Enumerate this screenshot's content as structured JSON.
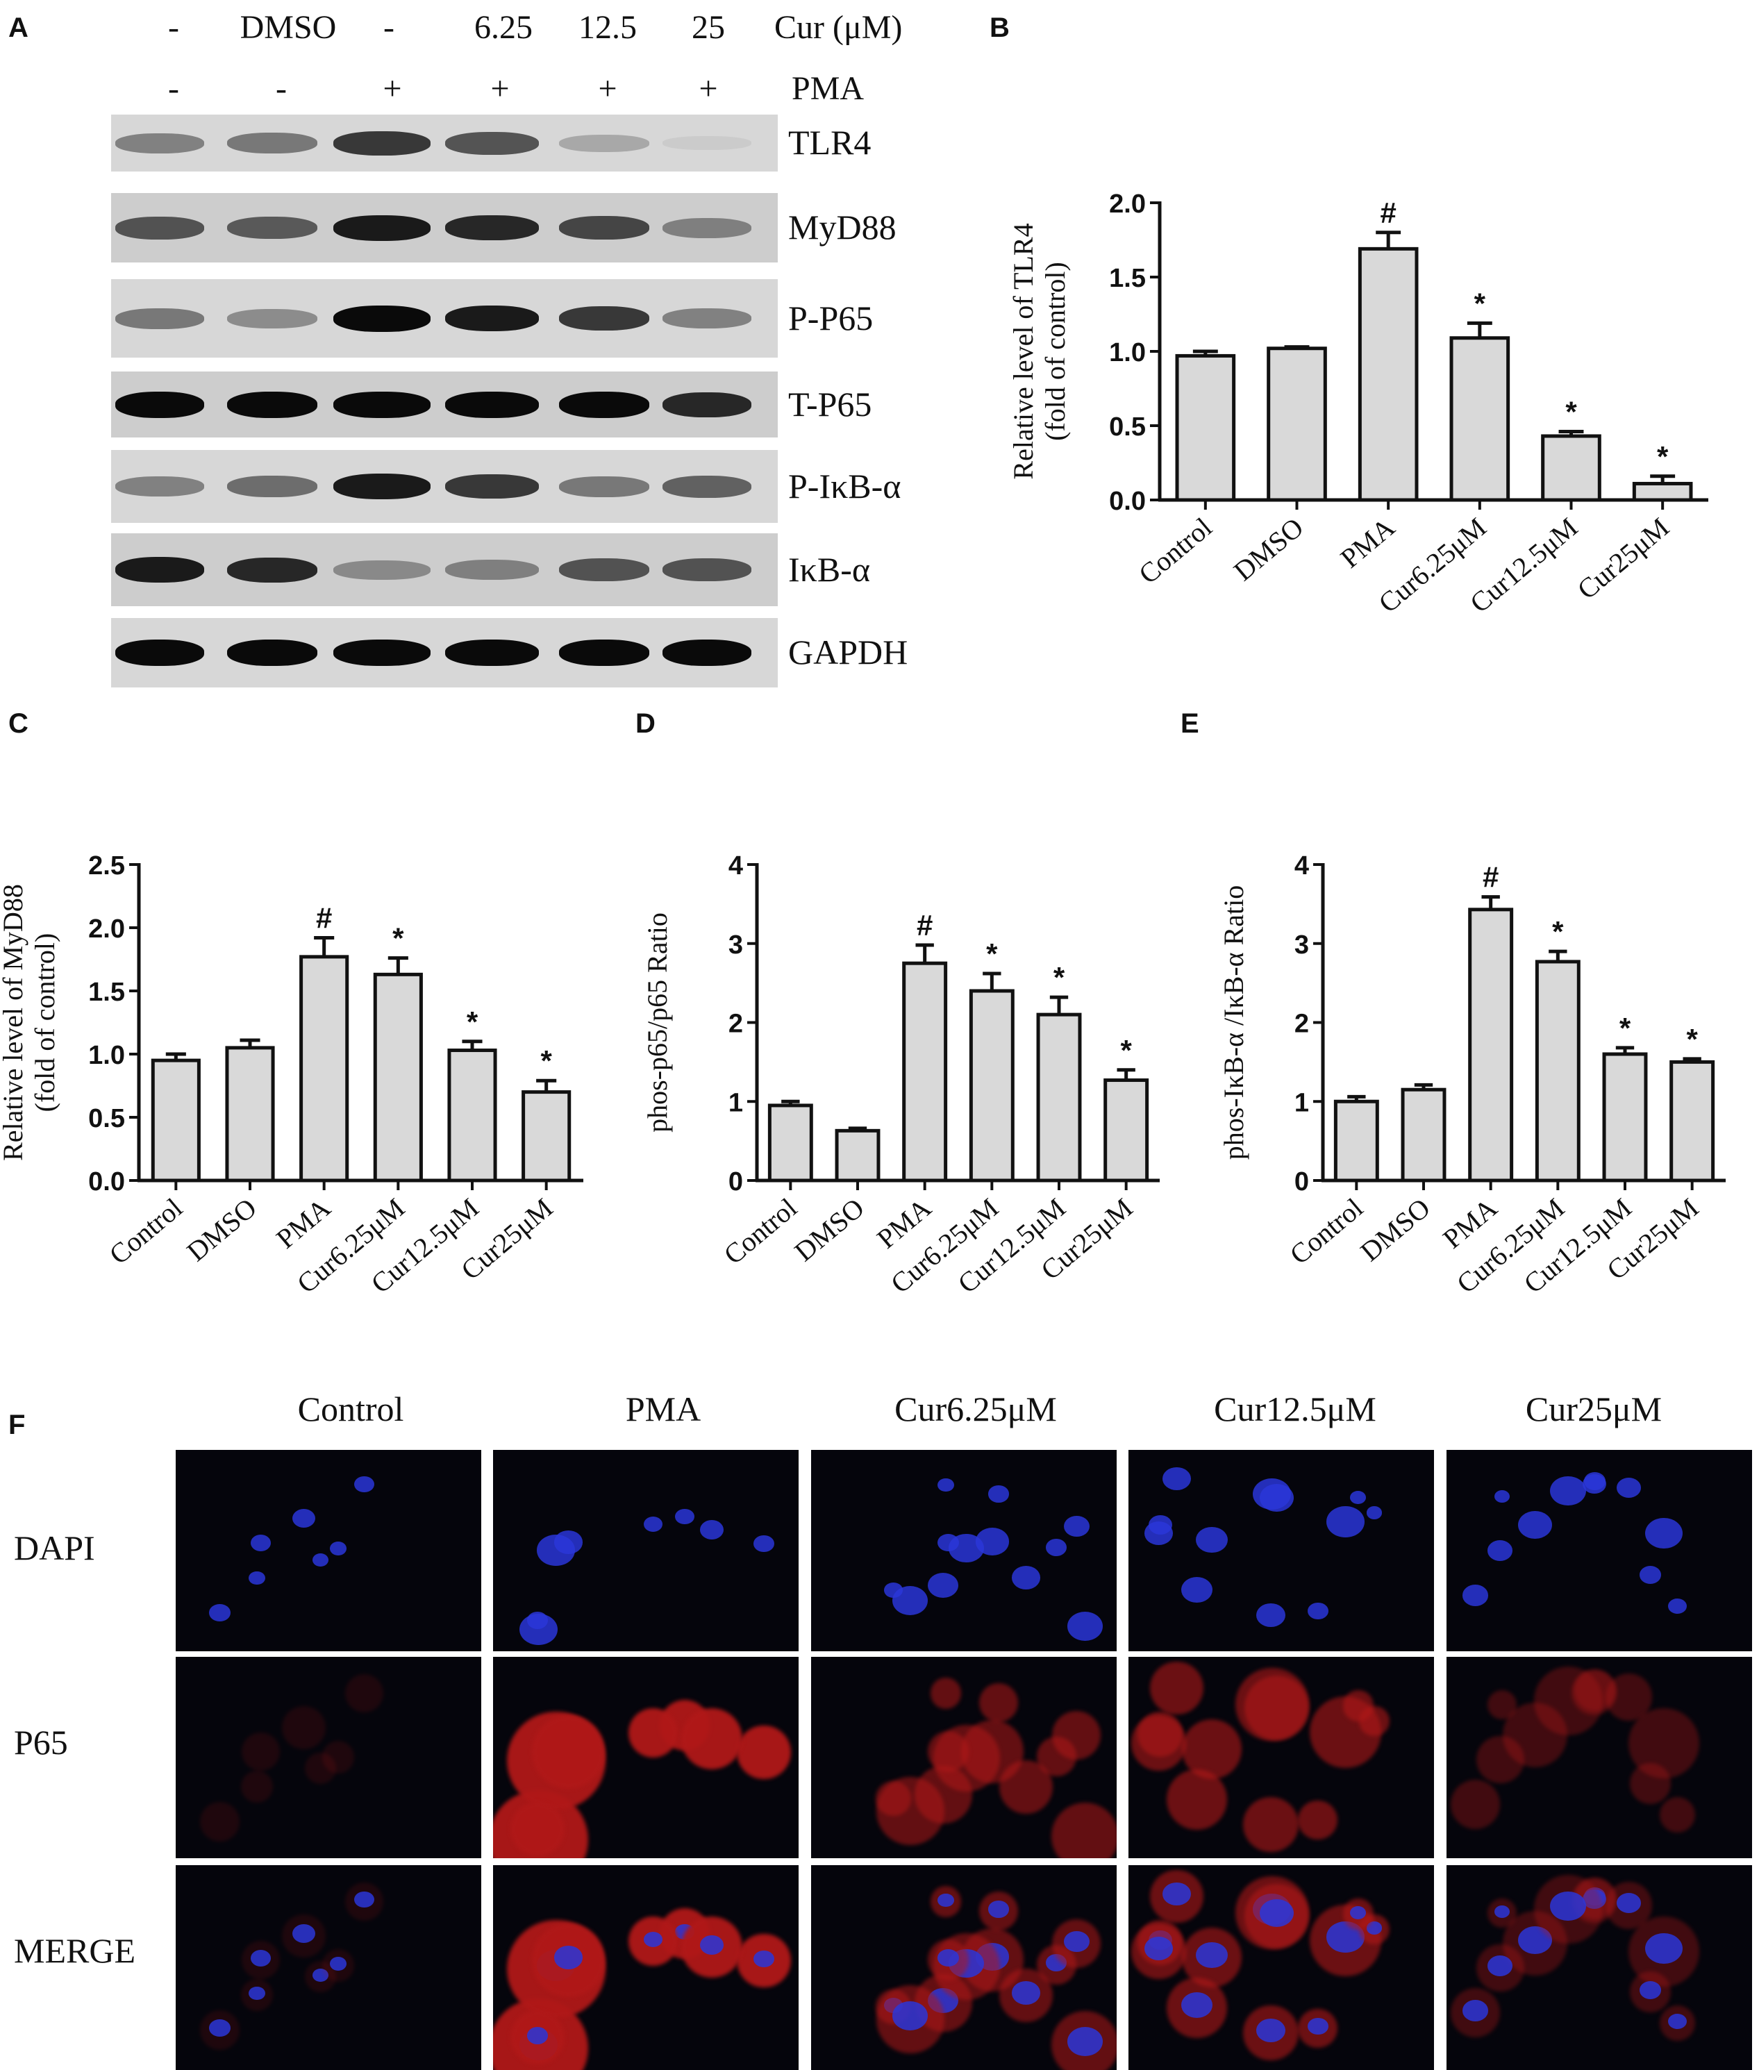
{
  "panel_labels": {
    "A": "A",
    "B": "B",
    "C": "C",
    "D": "D",
    "E": "E",
    "F": "F"
  },
  "western_blot": {
    "cur_row": {
      "values": [
        "-",
        "DMSO",
        "-",
        "6.25",
        "12.5",
        "25"
      ],
      "label": "Cur (μM)"
    },
    "pma_row": {
      "values": [
        "-",
        "-",
        "+",
        "+",
        "+",
        "+"
      ],
      "label": "PMA"
    },
    "proteins": [
      {
        "name": "TLR4",
        "intensity": [
          0.55,
          0.6,
          0.85,
          0.75,
          0.35,
          0.08
        ]
      },
      {
        "name": "MyD88",
        "intensity": [
          0.75,
          0.72,
          0.95,
          0.9,
          0.8,
          0.55
        ]
      },
      {
        "name": "P-P65",
        "intensity": [
          0.6,
          0.5,
          1.0,
          0.95,
          0.85,
          0.55
        ]
      },
      {
        "name": "T-P65",
        "intensity": [
          1.0,
          1.0,
          1.0,
          1.0,
          1.0,
          0.9
        ]
      },
      {
        "name": "P-IκB-α",
        "intensity": [
          0.55,
          0.65,
          0.95,
          0.85,
          0.6,
          0.7
        ]
      },
      {
        "name": "IκB-α",
        "intensity": [
          0.95,
          0.9,
          0.5,
          0.55,
          0.75,
          0.75
        ]
      },
      {
        "name": "GAPDH",
        "intensity": [
          1.0,
          1.0,
          1.0,
          1.0,
          1.0,
          1.0
        ]
      }
    ]
  },
  "chart_data": [
    {
      "panel": "B",
      "type": "bar",
      "categories": [
        "Control",
        "DMSO",
        "PMA",
        "Cur6.25μM",
        "Cur12.5μM",
        "Cur25μM"
      ],
      "values": [
        0.97,
        1.02,
        1.69,
        1.09,
        0.43,
        0.11
      ],
      "errors": [
        0.03,
        0.01,
        0.11,
        0.1,
        0.03,
        0.05
      ],
      "annotations": [
        "",
        "",
        "#",
        "*",
        "*",
        "*"
      ],
      "ylabel_lines": [
        "Relative level of TLR4",
        "(fold of control)"
      ],
      "ylim": [
        0,
        2.0
      ],
      "yticks": [
        "0.0",
        "0.5",
        "1.0",
        "1.5",
        "2.0"
      ]
    },
    {
      "panel": "C",
      "type": "bar",
      "categories": [
        "Control",
        "DMSO",
        "PMA",
        "Cur6.25μM",
        "Cur12.5μM",
        "Cur25μM"
      ],
      "values": [
        0.95,
        1.05,
        1.77,
        1.63,
        1.03,
        0.7
      ],
      "errors": [
        0.05,
        0.06,
        0.15,
        0.13,
        0.07,
        0.09
      ],
      "annotations": [
        "",
        "",
        "#",
        "*",
        "*",
        "*"
      ],
      "ylabel_lines": [
        "Relative level of MyD88",
        "(fold of control)"
      ],
      "ylim": [
        0,
        2.5
      ],
      "yticks": [
        "0.0",
        "0.5",
        "1.0",
        "1.5",
        "2.0",
        "2.5"
      ]
    },
    {
      "panel": "D",
      "type": "bar",
      "categories": [
        "Control",
        "DMSO",
        "PMA",
        "Cur6.25μM",
        "Cur12.5μM",
        "Cur25μM"
      ],
      "values": [
        0.95,
        0.63,
        2.75,
        2.4,
        2.1,
        1.27
      ],
      "errors": [
        0.05,
        0.03,
        0.23,
        0.22,
        0.22,
        0.13
      ],
      "annotations": [
        "",
        "",
        "#",
        "*",
        "*",
        "*"
      ],
      "ylabel_lines": [
        "phos-p65/p65 Ratio"
      ],
      "ylim": [
        0,
        4
      ],
      "yticks": [
        "0",
        "1",
        "2",
        "3",
        "4"
      ]
    },
    {
      "panel": "E",
      "type": "bar",
      "categories": [
        "Control",
        "DMSO",
        "PMA",
        "Cur6.25μM",
        "Cur12.5μM",
        "Cur25μM"
      ],
      "values": [
        1.0,
        1.15,
        3.43,
        2.77,
        1.6,
        1.5
      ],
      "errors": [
        0.06,
        0.06,
        0.16,
        0.13,
        0.08,
        0.04
      ],
      "annotations": [
        "",
        "",
        "#",
        "*",
        "*",
        "*"
      ],
      "ylabel_lines": [
        "phos-IκB-α /IκB-α Ratio"
      ],
      "ylim": [
        0,
        4
      ],
      "yticks": [
        "0",
        "1",
        "2",
        "3",
        "4"
      ]
    }
  ],
  "immunofluorescence": {
    "columns": [
      "Control",
      "PMA",
      "Cur6.25μM",
      "Cur12.5μM",
      "Cur25μM"
    ],
    "rows": [
      "DAPI",
      "P65",
      "MERGE"
    ],
    "colors": {
      "dapi": "#2a36d8",
      "p65": "#b01818",
      "background": "#05050c"
    }
  },
  "colors": {
    "bar_fill": "#d9d9d9",
    "stroke": "#111111"
  }
}
